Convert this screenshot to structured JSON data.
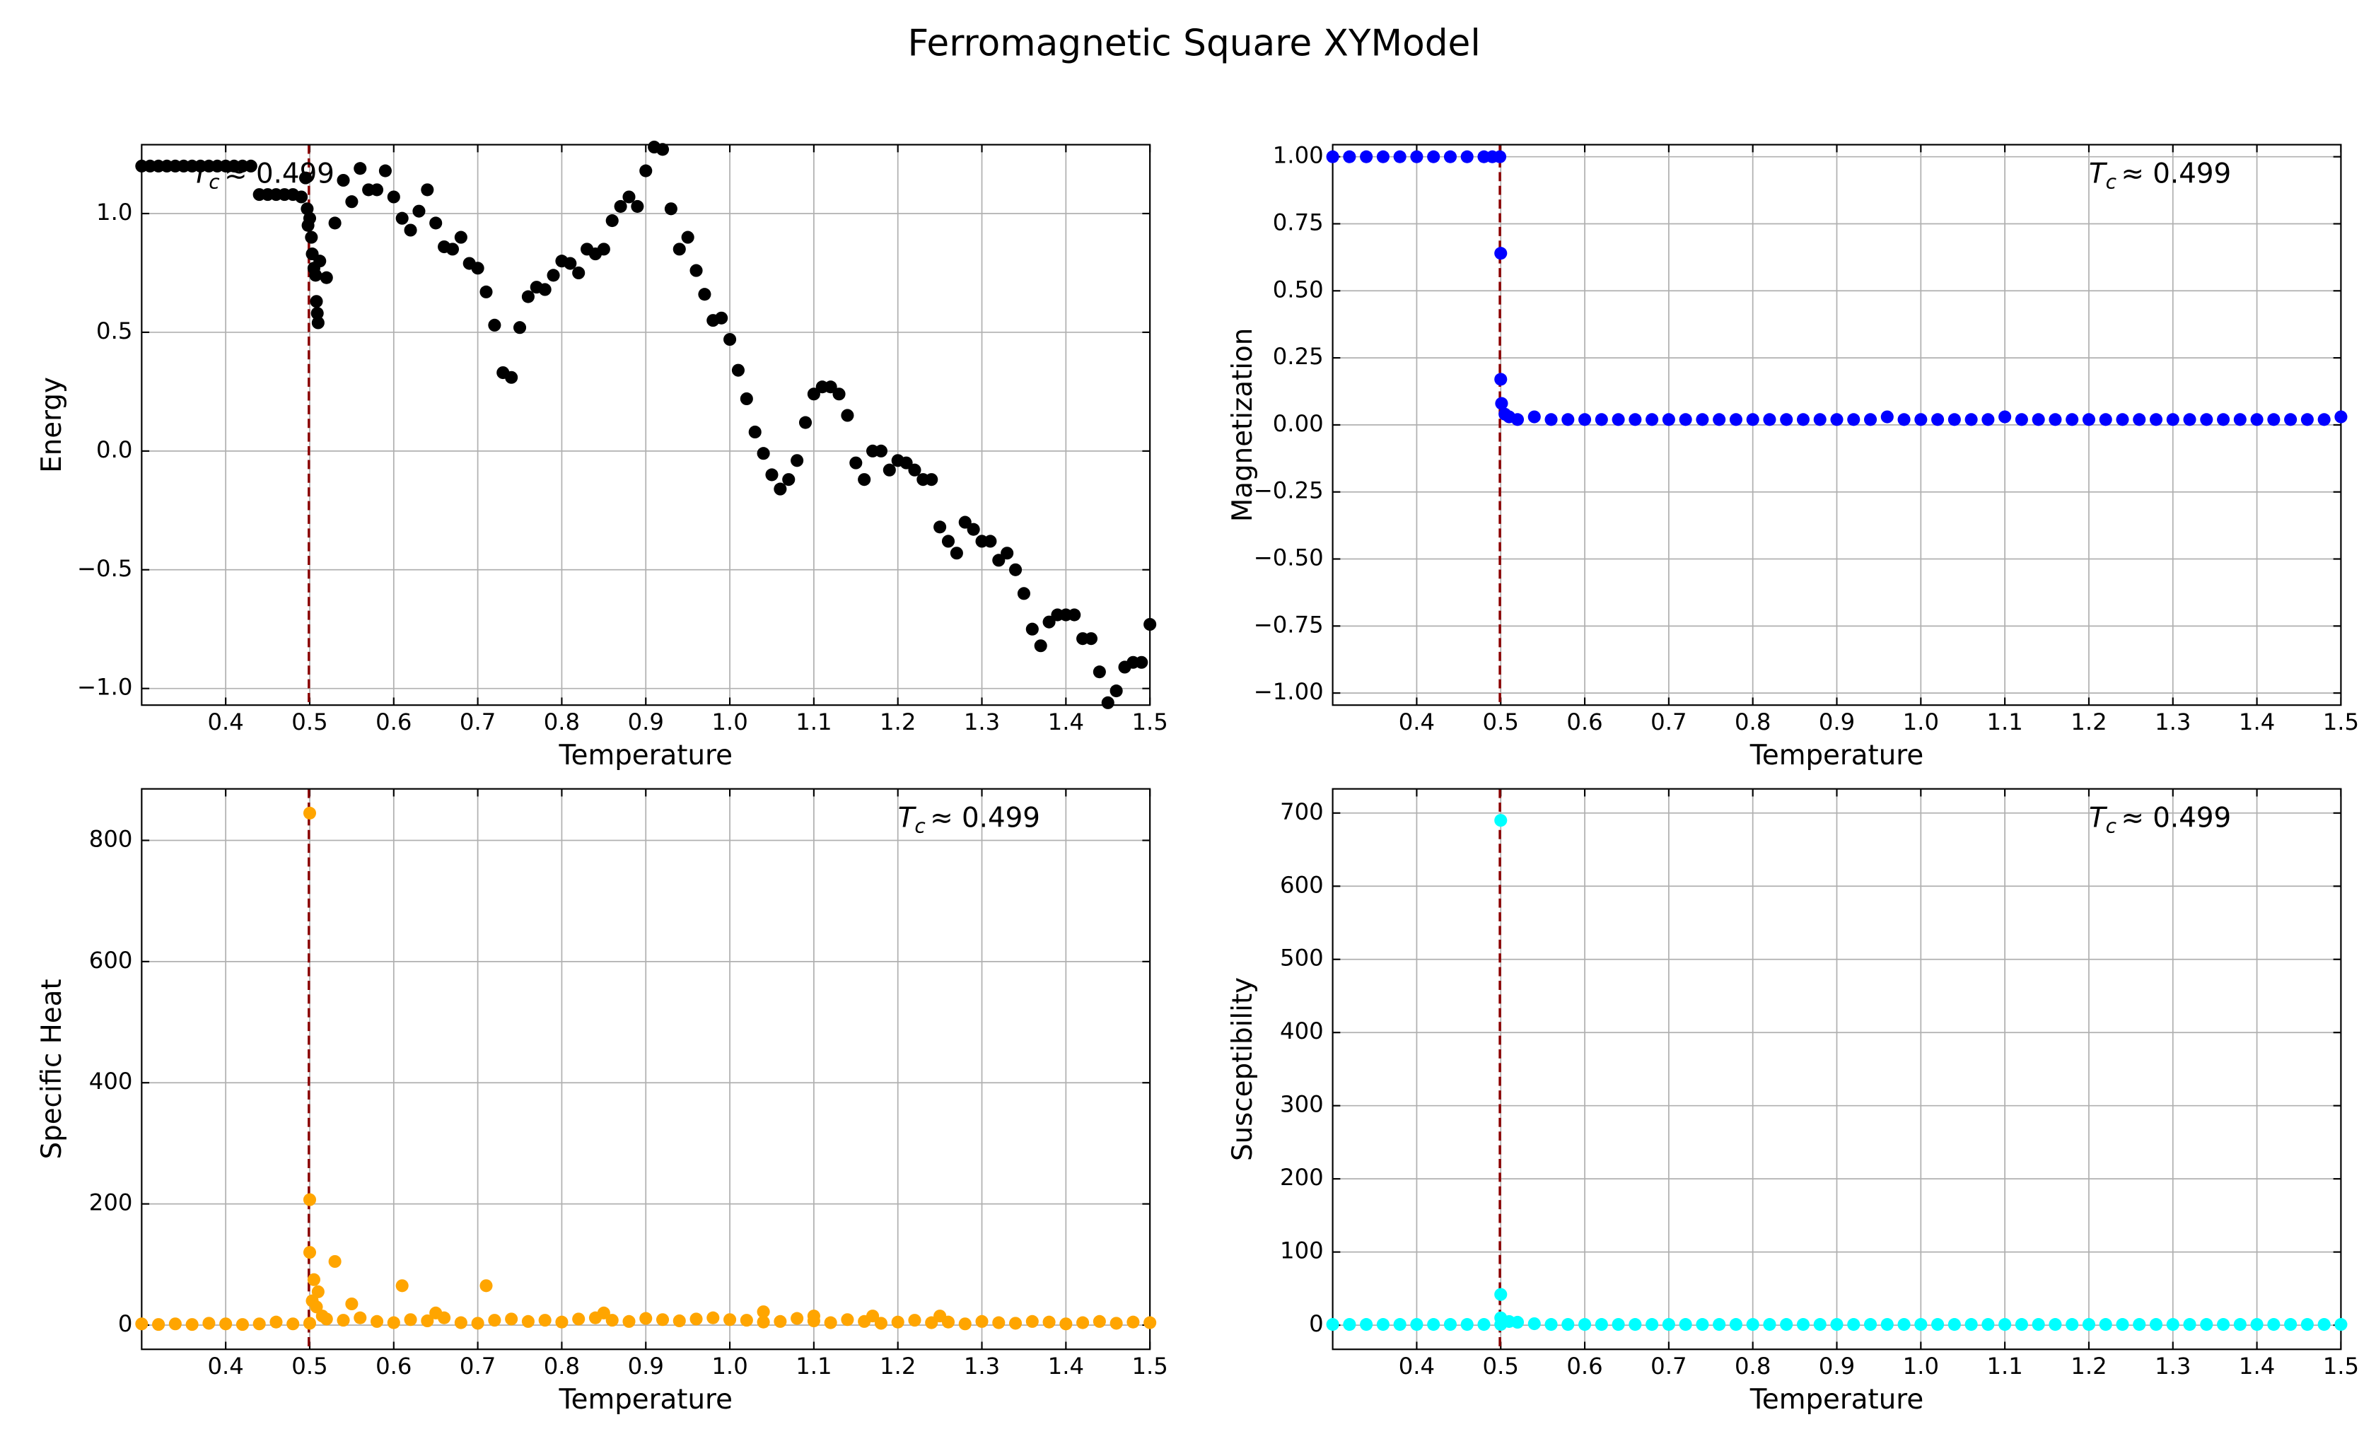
{
  "figure_title": "Ferromagnetic Square XYModel",
  "chart_data": [
    {
      "type": "scatter",
      "xlabel": "Temperature",
      "ylabel": "Energy",
      "color": "#000000",
      "grid": true,
      "xlim": [
        0.3,
        1.5
      ],
      "ylim": [
        -1.07,
        1.29
      ],
      "xticks": [
        0.4,
        0.5,
        0.6,
        0.7,
        0.8,
        0.9,
        {
          "value": 1,
          "label": "1.0"
        },
        1.1,
        1.2,
        1.3,
        1.4,
        1.5
      ],
      "yticks": [
        {
          "value": -1,
          "label": "−1.0"
        },
        {
          "value": -0.5,
          "label": "−0.5"
        },
        {
          "value": 0,
          "label": "0.0"
        },
        0.5,
        {
          "value": 1,
          "label": "1.0"
        }
      ],
      "vline": 0.499,
      "annotation": {
        "symbol": "T",
        "subscript": "c",
        "text": "≈  0.499"
      },
      "x": [
        0.3,
        0.31,
        0.32,
        0.33,
        0.34,
        0.35,
        0.36,
        0.37,
        0.38,
        0.39,
        0.4,
        0.41,
        0.42,
        0.43,
        0.44,
        0.45,
        0.46,
        0.47,
        0.48,
        0.49,
        0.495,
        0.497,
        0.498,
        0.5,
        0.502,
        0.503,
        0.505,
        0.507,
        0.508,
        0.509,
        0.51,
        0.512,
        0.52,
        0.53,
        0.54,
        0.55,
        0.56,
        0.57,
        0.58,
        0.59,
        0.6,
        0.61,
        0.62,
        0.63,
        0.64,
        0.65,
        0.66,
        0.67,
        0.68,
        0.69,
        0.7,
        0.71,
        0.72,
        0.73,
        0.74,
        0.75,
        0.76,
        0.77,
        0.78,
        0.79,
        0.8,
        0.81,
        0.82,
        0.83,
        0.84,
        0.85,
        0.86,
        0.87,
        0.88,
        0.89,
        0.9,
        0.91,
        0.92,
        0.93,
        0.94,
        0.95,
        0.96,
        0.97,
        0.98,
        0.99,
        1.0,
        1.01,
        1.02,
        1.03,
        1.04,
        1.05,
        1.06,
        1.07,
        1.08,
        1.09,
        1.1,
        1.11,
        1.12,
        1.13,
        1.14,
        1.15,
        1.16,
        1.17,
        1.18,
        1.19,
        1.2,
        1.21,
        1.22,
        1.23,
        1.24,
        1.25,
        1.26,
        1.27,
        1.28,
        1.29,
        1.3,
        1.31,
        1.32,
        1.33,
        1.34,
        1.35,
        1.36,
        1.37,
        1.38,
        1.39,
        1.4,
        1.41,
        1.42,
        1.43,
        1.44,
        1.45,
        1.46,
        1.47,
        1.48,
        1.49,
        1.5
      ],
      "values": [
        1.2,
        1.2,
        1.2,
        1.2,
        1.2,
        1.2,
        1.2,
        1.2,
        1.2,
        1.2,
        1.2,
        1.2,
        1.2,
        1.2,
        1.08,
        1.08,
        1.08,
        1.08,
        1.08,
        1.07,
        1.15,
        1.02,
        0.95,
        0.98,
        0.9,
        0.83,
        0.77,
        0.74,
        0.63,
        0.58,
        0.54,
        0.8,
        0.73,
        0.96,
        1.14,
        1.05,
        1.19,
        1.1,
        1.1,
        1.18,
        1.07,
        0.98,
        0.93,
        1.01,
        1.1,
        0.96,
        0.86,
        0.85,
        0.9,
        0.79,
        0.77,
        0.67,
        0.53,
        0.33,
        0.31,
        0.52,
        0.65,
        0.69,
        0.68,
        0.74,
        0.8,
        0.79,
        0.75,
        0.85,
        0.83,
        0.85,
        0.97,
        1.03,
        1.07,
        1.03,
        1.18,
        1.28,
        1.27,
        1.02,
        0.85,
        0.9,
        0.76,
        0.66,
        0.55,
        0.56,
        0.47,
        0.34,
        0.22,
        0.08,
        -0.01,
        -0.1,
        -0.16,
        -0.12,
        -0.04,
        0.12,
        0.24,
        0.27,
        0.27,
        0.24,
        0.15,
        -0.05,
        -0.12,
        0.0,
        0.0,
        -0.08,
        -0.04,
        -0.05,
        -0.08,
        -0.12,
        -0.12,
        -0.32,
        -0.38,
        -0.43,
        -0.3,
        -0.33,
        -0.38,
        -0.38,
        -0.46,
        -0.43,
        -0.5,
        -0.6,
        -0.75,
        -0.82,
        -0.72,
        -0.69,
        -0.69,
        -0.69,
        -0.79,
        -0.79,
        -0.93,
        -1.06,
        -1.01,
        -0.91,
        -0.89,
        -0.89,
        -0.73
      ]
    },
    {
      "type": "scatter",
      "xlabel": "Temperature",
      "ylabel": "Magnetization",
      "color": "#0000ff",
      "grid": true,
      "xlim": [
        0.3,
        1.5
      ],
      "ylim": [
        -1.045,
        1.045
      ],
      "xticks": [
        0.4,
        0.5,
        0.6,
        0.7,
        0.8,
        0.9,
        {
          "value": 1,
          "label": "1.0"
        },
        1.1,
        1.2,
        1.3,
        1.4,
        1.5
      ],
      "yticks": [
        {
          "value": -1,
          "label": "−1.00"
        },
        {
          "value": -0.75,
          "label": "−0.75"
        },
        {
          "value": -0.5,
          "label": "−0.50"
        },
        {
          "value": -0.25,
          "label": "−0.25"
        },
        {
          "value": 0,
          "label": "0.00"
        },
        0.25,
        {
          "value": 0.5,
          "label": "0.50"
        },
        0.75,
        {
          "value": 1,
          "label": "1.00"
        }
      ],
      "vline": 0.499,
      "annotation": {
        "symbol": "T",
        "subscript": "c",
        "text": "≈  0.499"
      },
      "x": [
        0.3,
        0.32,
        0.34,
        0.36,
        0.38,
        0.4,
        0.42,
        0.44,
        0.46,
        0.48,
        0.49,
        0.499,
        0.5,
        0.5,
        0.501,
        0.505,
        0.51,
        0.52,
        0.54,
        0.56,
        0.58,
        0.6,
        0.62,
        0.64,
        0.66,
        0.68,
        0.7,
        0.72,
        0.74,
        0.76,
        0.78,
        0.8,
        0.82,
        0.84,
        0.86,
        0.88,
        0.9,
        0.92,
        0.94,
        0.96,
        0.98,
        1.0,
        1.02,
        1.04,
        1.06,
        1.08,
        1.1,
        1.12,
        1.14,
        1.16,
        1.18,
        1.2,
        1.22,
        1.24,
        1.26,
        1.28,
        1.3,
        1.32,
        1.34,
        1.36,
        1.38,
        1.4,
        1.42,
        1.44,
        1.46,
        1.48,
        1.5
      ],
      "values": [
        1.0,
        1.0,
        1.0,
        1.0,
        1.0,
        1.0,
        1.0,
        1.0,
        1.0,
        1.0,
        1.0,
        1.0,
        0.64,
        0.17,
        0.08,
        0.04,
        0.03,
        0.02,
        0.03,
        0.02,
        0.02,
        0.02,
        0.02,
        0.02,
        0.02,
        0.02,
        0.02,
        0.02,
        0.02,
        0.02,
        0.02,
        0.02,
        0.02,
        0.02,
        0.02,
        0.02,
        0.02,
        0.02,
        0.02,
        0.03,
        0.02,
        0.02,
        0.02,
        0.02,
        0.02,
        0.02,
        0.03,
        0.02,
        0.02,
        0.02,
        0.02,
        0.02,
        0.02,
        0.02,
        0.02,
        0.02,
        0.02,
        0.02,
        0.02,
        0.02,
        0.02,
        0.02,
        0.02,
        0.02,
        0.02,
        0.02,
        0.03
      ]
    },
    {
      "type": "scatter",
      "xlabel": "Temperature",
      "ylabel": "Specific Heat",
      "color": "#ffa500",
      "grid": true,
      "xlim": [
        0.3,
        1.5
      ],
      "ylim": [
        -40,
        885
      ],
      "xticks": [
        0.4,
        0.5,
        0.6,
        0.7,
        0.8,
        0.9,
        {
          "value": 1,
          "label": "1.0"
        },
        1.1,
        1.2,
        1.3,
        1.4,
        1.5
      ],
      "yticks": [
        0,
        200,
        400,
        600,
        800
      ],
      "vline": 0.499,
      "annotation": {
        "symbol": "T",
        "subscript": "c",
        "text": "≈  0.499"
      },
      "x": [
        0.3,
        0.32,
        0.34,
        0.36,
        0.38,
        0.4,
        0.42,
        0.44,
        0.46,
        0.48,
        0.5,
        0.52,
        0.54,
        0.56,
        0.58,
        0.6,
        0.62,
        0.64,
        0.66,
        0.68,
        0.7,
        0.72,
        0.74,
        0.76,
        0.78,
        0.8,
        0.82,
        0.84,
        0.86,
        0.88,
        0.9,
        0.92,
        0.94,
        0.96,
        0.98,
        1.0,
        1.02,
        1.04,
        1.06,
        1.08,
        1.1,
        1.12,
        1.14,
        1.16,
        1.18,
        1.2,
        1.22,
        1.24,
        1.26,
        1.28,
        1.3,
        1.32,
        1.34,
        1.36,
        1.38,
        1.4,
        1.42,
        1.44,
        1.46,
        1.48,
        1.5,
        0.5,
        0.5,
        0.5,
        0.505,
        0.51,
        0.503,
        0.508,
        0.515,
        0.53,
        0.55,
        0.61,
        0.71,
        1.04,
        0.65,
        0.85,
        1.1,
        1.17,
        1.25
      ],
      "values": [
        2,
        1,
        2,
        1,
        3,
        2,
        1,
        2,
        5,
        2,
        3,
        10,
        8,
        12,
        6,
        4,
        9,
        7,
        12,
        4,
        3,
        8,
        10,
        6,
        8,
        5,
        10,
        12,
        8,
        6,
        11,
        9,
        7,
        10,
        12,
        9,
        8,
        5,
        6,
        11,
        7,
        4,
        9,
        6,
        3,
        5,
        8,
        4,
        5,
        2,
        6,
        4,
        3,
        6,
        5,
        2,
        4,
        6,
        3,
        5,
        4,
        845,
        207,
        120,
        75,
        55,
        40,
        30,
        15,
        105,
        35,
        65,
        65,
        22,
        20,
        20,
        15,
        15,
        15
      ]
    },
    {
      "type": "scatter",
      "xlabel": "Temperature",
      "ylabel": "Susceptibility",
      "color": "#00ffff",
      "grid": true,
      "xlim": [
        0.3,
        1.5
      ],
      "ylim": [
        -33,
        733
      ],
      "xticks": [
        0.4,
        0.5,
        0.6,
        0.7,
        0.8,
        0.9,
        {
          "value": 1,
          "label": "1.0"
        },
        1.1,
        1.2,
        1.3,
        1.4,
        1.5
      ],
      "yticks": [
        0,
        100,
        200,
        300,
        400,
        500,
        600,
        700
      ],
      "vline": 0.499,
      "annotation": {
        "symbol": "T",
        "subscript": "c",
        "text": "≈  0.499"
      },
      "x": [
        0.3,
        0.32,
        0.34,
        0.36,
        0.38,
        0.4,
        0.42,
        0.44,
        0.46,
        0.48,
        0.5,
        0.52,
        0.54,
        0.56,
        0.58,
        0.6,
        0.62,
        0.64,
        0.66,
        0.68,
        0.7,
        0.72,
        0.74,
        0.76,
        0.78,
        0.8,
        0.82,
        0.84,
        0.86,
        0.88,
        0.9,
        0.92,
        0.94,
        0.96,
        0.98,
        1.0,
        1.02,
        1.04,
        1.06,
        1.08,
        1.1,
        1.12,
        1.14,
        1.16,
        1.18,
        1.2,
        1.22,
        1.24,
        1.26,
        1.28,
        1.3,
        1.32,
        1.34,
        1.36,
        1.38,
        1.4,
        1.42,
        1.44,
        1.46,
        1.48,
        1.5,
        0.5,
        0.5,
        0.5,
        0.51
      ],
      "values": [
        1,
        1,
        1,
        1,
        1,
        1,
        1,
        1,
        1,
        1,
        1,
        4,
        2,
        1,
        1,
        1,
        1,
        1,
        1,
        1,
        1,
        1,
        1,
        1,
        1,
        1,
        1,
        1,
        1,
        1,
        1,
        1,
        1,
        1,
        1,
        1,
        1,
        1,
        1,
        1,
        1,
        1,
        1,
        1,
        1,
        1,
        1,
        1,
        1,
        1,
        1,
        1,
        1,
        1,
        1,
        1,
        1,
        1,
        1,
        1,
        1,
        690,
        42,
        10,
        5
      ]
    }
  ]
}
